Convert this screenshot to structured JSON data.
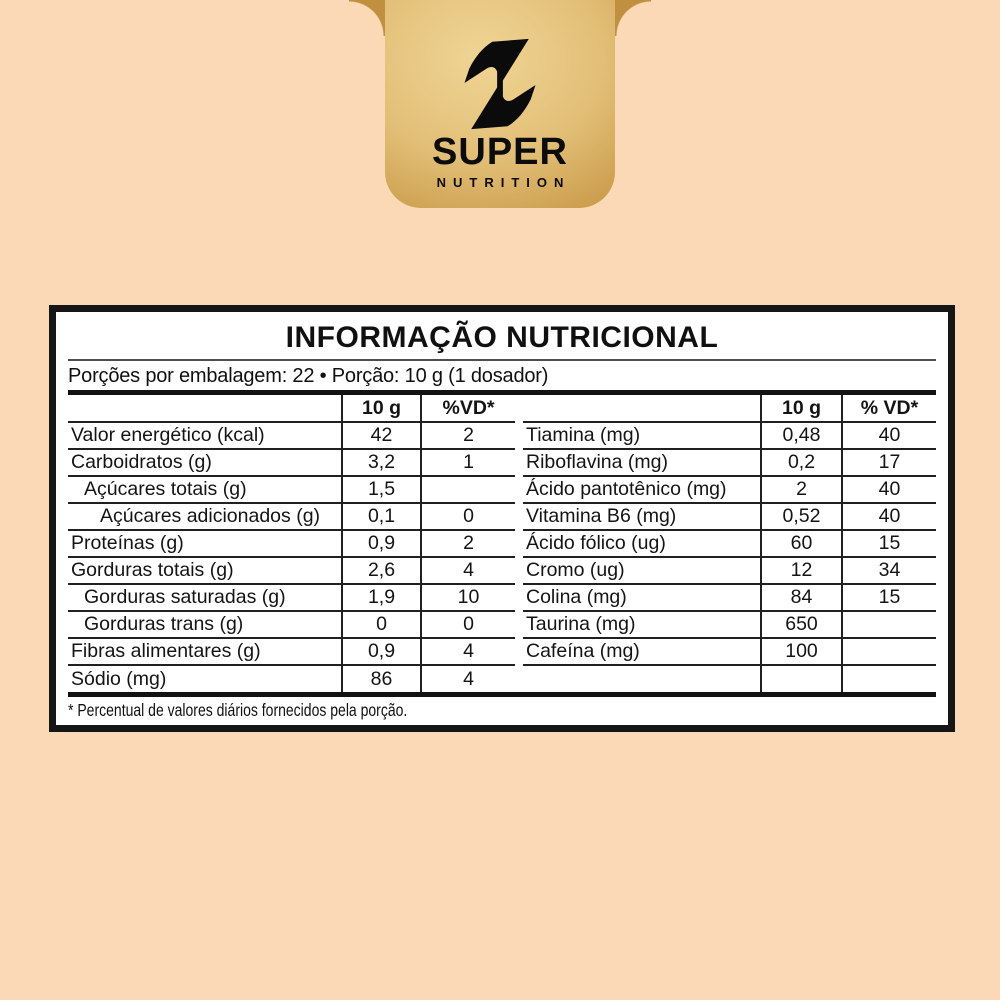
{
  "page": {
    "background_color": "#FCD9B6"
  },
  "brand": {
    "logo_icon": "s-bolt-icon",
    "name_top": "SUPER",
    "name_bottom": "NUTRITION",
    "badge_gold_light": "#F0D595",
    "badge_gold_dark": "#AA7D30",
    "logo_color": "#0C0C0C"
  },
  "panel": {
    "title": "INFORMAÇÃO NUTRICIONAL",
    "serving_line": "Porções por embalagem: 22 • Porção: 10 g (1 dosador)",
    "footnote": "* Percentual de valores diários fornecidos pela porção.",
    "border_color": "#161616",
    "left_table": {
      "amount_header": "10 g",
      "vd_header": "%VD*",
      "rows": [
        {
          "name": "Valor energético (kcal)",
          "amount": "42",
          "vd": "2",
          "indent": 0
        },
        {
          "name": "Carboidratos (g)",
          "amount": "3,2",
          "vd": "1",
          "indent": 0
        },
        {
          "name": "Açúcares totais (g)",
          "amount": "1,5",
          "vd": "",
          "indent": 1
        },
        {
          "name": "Açúcares adicionados (g)",
          "amount": "0,1",
          "vd": "0",
          "indent": 2
        },
        {
          "name": "Proteínas (g)",
          "amount": "0,9",
          "vd": "2",
          "indent": 0
        },
        {
          "name": "Gorduras totais (g)",
          "amount": "2,6",
          "vd": "4",
          "indent": 0
        },
        {
          "name": "Gorduras saturadas (g)",
          "amount": "1,9",
          "vd": "10",
          "indent": 1
        },
        {
          "name": "Gorduras trans (g)",
          "amount": "0",
          "vd": "0",
          "indent": 1
        },
        {
          "name": "Fibras alimentares (g)",
          "amount": "0,9",
          "vd": "4",
          "indent": 0
        },
        {
          "name": "Sódio (mg)",
          "amount": "86",
          "vd": "4",
          "indent": 0
        }
      ]
    },
    "right_table": {
      "amount_header": "10 g",
      "vd_header": "% VD*",
      "rows": [
        {
          "name": "Tiamina (mg)",
          "amount": "0,48",
          "vd": "40",
          "indent": 0
        },
        {
          "name": "Riboflavina (mg)",
          "amount": "0,2",
          "vd": "17",
          "indent": 0
        },
        {
          "name": "Ácido pantotênico (mg)",
          "amount": "2",
          "vd": "40",
          "indent": 0
        },
        {
          "name": "Vitamina B6 (mg)",
          "amount": "0,52",
          "vd": "40",
          "indent": 0
        },
        {
          "name": "Ácido fólico (ug)",
          "amount": "60",
          "vd": "15",
          "indent": 0
        },
        {
          "name": "Cromo (ug)",
          "amount": "12",
          "vd": "34",
          "indent": 0
        },
        {
          "name": "Colina (mg)",
          "amount": "84",
          "vd": "15",
          "indent": 0
        },
        {
          "name": "Taurina (mg)",
          "amount": "650",
          "vd": "",
          "indent": 0
        },
        {
          "name": "Cafeína (mg)",
          "amount": "100",
          "vd": "",
          "indent": 0
        },
        {
          "name": "",
          "amount": "",
          "vd": "",
          "indent": 0
        }
      ]
    }
  }
}
